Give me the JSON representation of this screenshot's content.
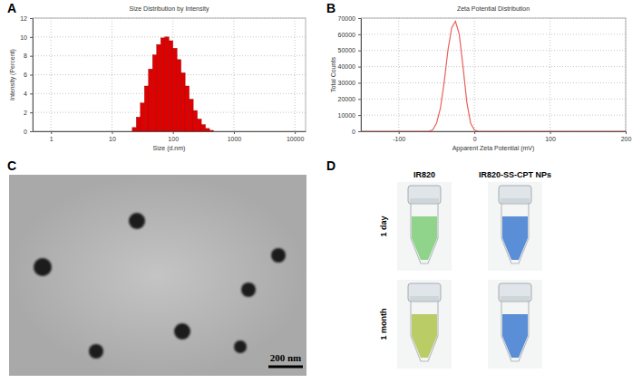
{
  "chart_data": [
    {
      "type": "histogram",
      "title": "Size Distribution by Intensity",
      "x_label": "Size (d.nm)",
      "y_label": "Intensity (Percent)",
      "bins": [
        21.54,
        25.12,
        29.29,
        34.15,
        39.81,
        46.42,
        54.12,
        63.1,
        73.56,
        85.77,
        100,
        116.59,
        135.94,
        158.49,
        184.79,
        215.44,
        251.19,
        292.86,
        341.46,
        398.11,
        464.16
      ],
      "values": [
        0.4,
        1.5,
        3.0,
        4.8,
        6.6,
        8.1,
        9.2,
        9.9,
        10.0,
        9.6,
        8.8,
        7.6,
        6.2,
        4.8,
        3.4,
        2.2,
        1.3,
        0.7,
        0.3,
        0.1
      ],
      "color": "#e00000",
      "log": "x",
      "xlim": [
        0.5,
        15000
      ],
      "xticks": [
        1,
        10,
        100,
        1000,
        10000
      ],
      "ylim": [
        0,
        12
      ],
      "yticks": [
        0,
        2,
        4,
        6,
        8,
        10,
        12
      ],
      "grid": true
    },
    {
      "type": "line",
      "title": "Zeta Potential Distribution",
      "x_label": "Apparent Zeta Potential (mV)",
      "y_label": "Total Counts",
      "x": [
        -150,
        -60,
        -55,
        -50,
        -45,
        -40,
        -35,
        -30,
        -25,
        -20,
        -15,
        -10,
        -5,
        0,
        5,
        200
      ],
      "values": [
        0,
        0,
        1000,
        5000,
        14000,
        30000,
        50000,
        64000,
        68000,
        60000,
        40000,
        18000,
        5000,
        800,
        0,
        0
      ],
      "color": "#e8605c",
      "xlim": [
        -150,
        200
      ],
      "xticks": [
        -100,
        0,
        100,
        200
      ],
      "ylim": [
        0,
        70000
      ],
      "yticks": [
        0,
        10000,
        20000,
        30000,
        40000,
        50000,
        60000,
        70000
      ],
      "grid": true
    }
  ],
  "panel_labels": [
    "A",
    "B",
    "C",
    "D"
  ],
  "tem": {
    "scale_bar": "200 nm"
  },
  "vials": {
    "columns": [
      "IR820",
      "IR820-SS-CPT NPs"
    ],
    "rows": [
      "1 day",
      "1 month"
    ],
    "liquid_colors": [
      [
        "#8fd48a",
        "#5a8fd8"
      ],
      [
        "#b9cc66",
        "#5a8fd8"
      ]
    ]
  }
}
